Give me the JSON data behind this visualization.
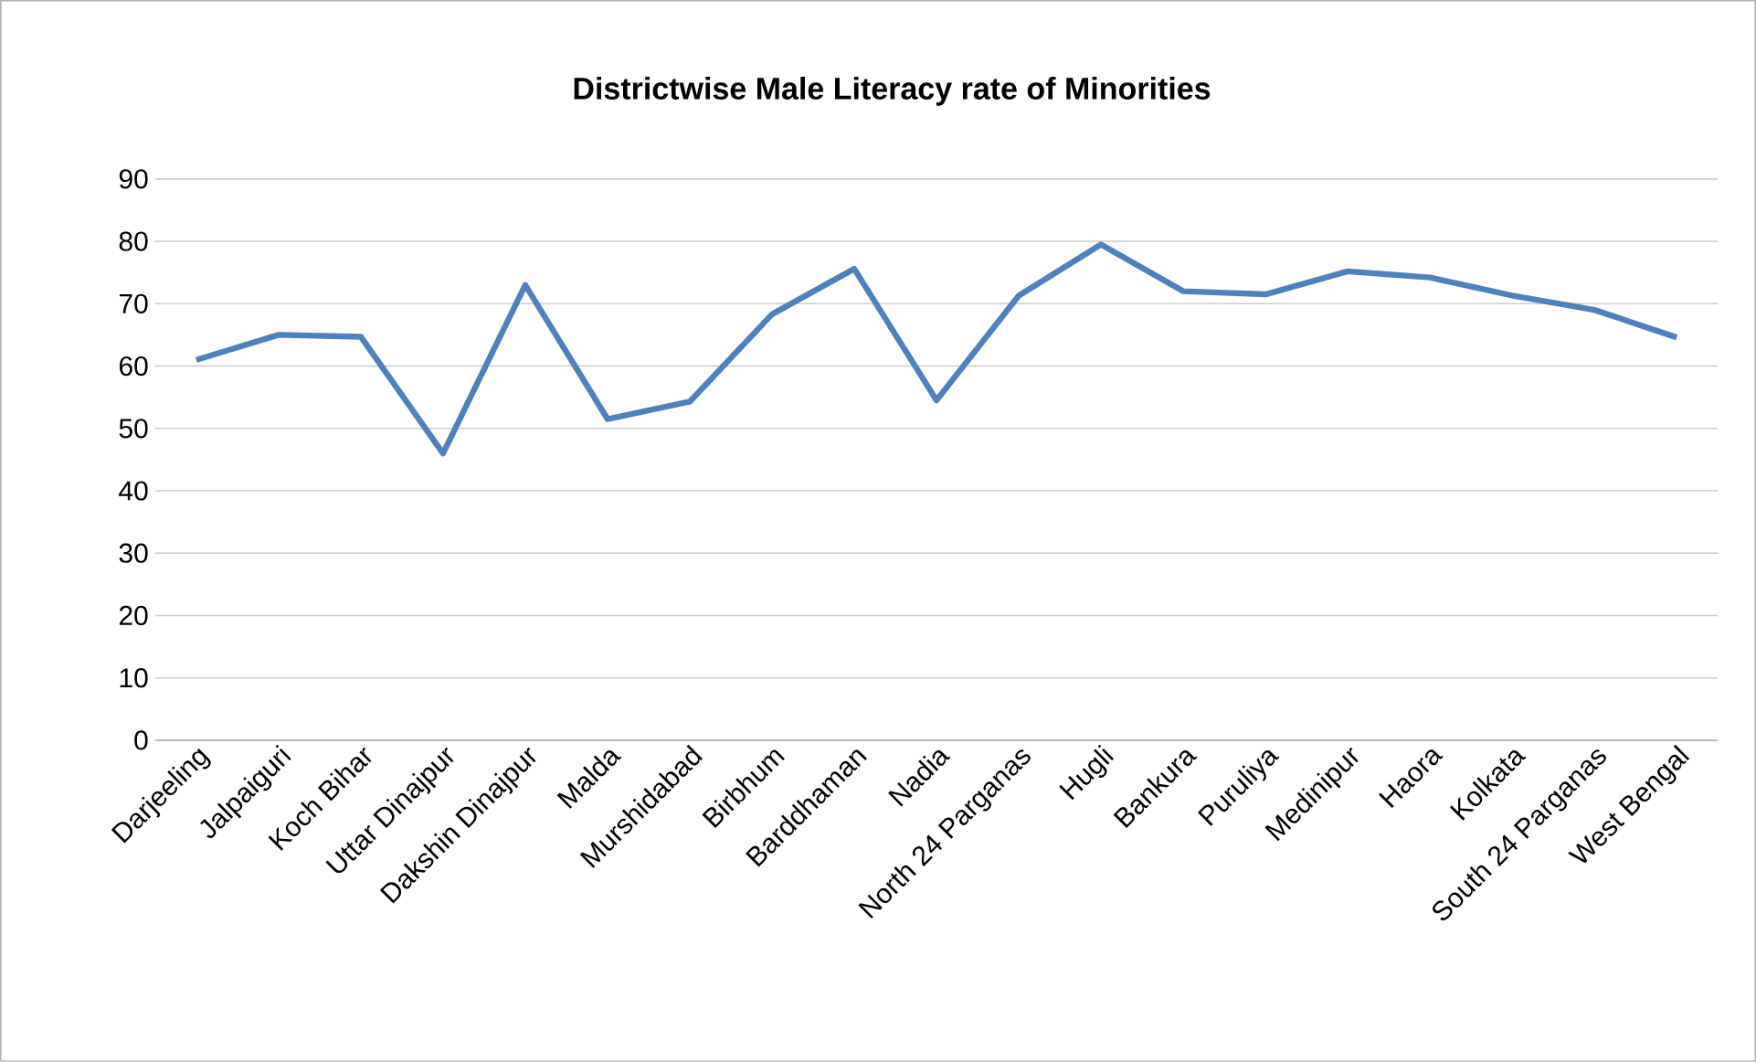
{
  "chart_data": {
    "type": "line",
    "title": "Districtwise Male Literacy rate of Minorities",
    "categories": [
      "Darjeeling",
      "Jalpaiguri",
      "Koch Bihar",
      "Uttar Dinajpur",
      "Dakshin Dinajpur",
      "Malda",
      "Murshidabad",
      "Birbhum",
      "Barddhaman",
      "Nadia",
      "North 24 Parganas",
      "Hugli",
      "Bankura",
      "Puruliya",
      "Medinipur",
      "Haora",
      "Kolkata",
      "South 24 Parganas",
      "West Bengal"
    ],
    "series": [
      {
        "color": "#4f81bd",
        "values": [
          61,
          65,
          64.7,
          46,
          73,
          51.5,
          54.3,
          68.3,
          75.6,
          54.5,
          71.3,
          79.5,
          72,
          71.5,
          75.2,
          74.2,
          71.3,
          69,
          64.6
        ]
      }
    ],
    "ylim": [
      0,
      90
    ],
    "yticks": [
      0,
      10,
      20,
      30,
      40,
      50,
      60,
      70,
      80,
      90
    ],
    "grid": "y"
  }
}
